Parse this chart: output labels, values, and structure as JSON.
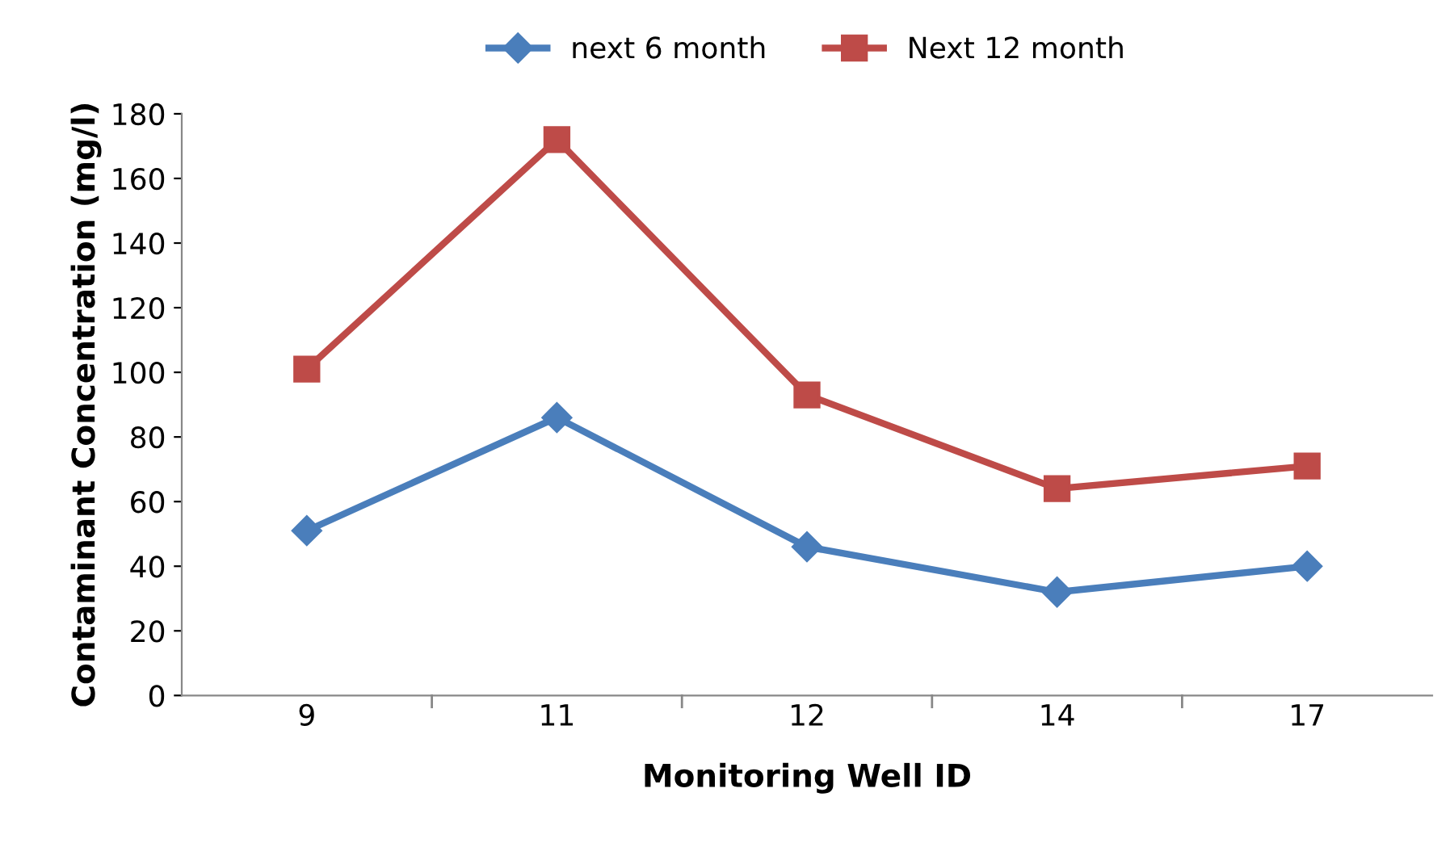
{
  "chart_data": {
    "type": "line",
    "xlabel": "Monitoring Well ID",
    "ylabel": "Contaminant Concentration (mg/l)",
    "categories": [
      "9",
      "11",
      "12",
      "14",
      "17"
    ],
    "series": [
      {
        "name": "next 6 month",
        "color": "#4a7ebb",
        "marker": "diamond",
        "values": [
          51,
          86,
          46,
          32,
          40
        ]
      },
      {
        "name": "Next 12 month",
        "color": "#be4b48",
        "marker": "square",
        "values": [
          101,
          172,
          93,
          64,
          71
        ]
      }
    ],
    "ylim": [
      0,
      180
    ],
    "yticks": [
      0,
      20,
      40,
      60,
      80,
      100,
      120,
      140,
      160,
      180
    ],
    "grid": false,
    "legend": "top",
    "line_style": "solid"
  }
}
